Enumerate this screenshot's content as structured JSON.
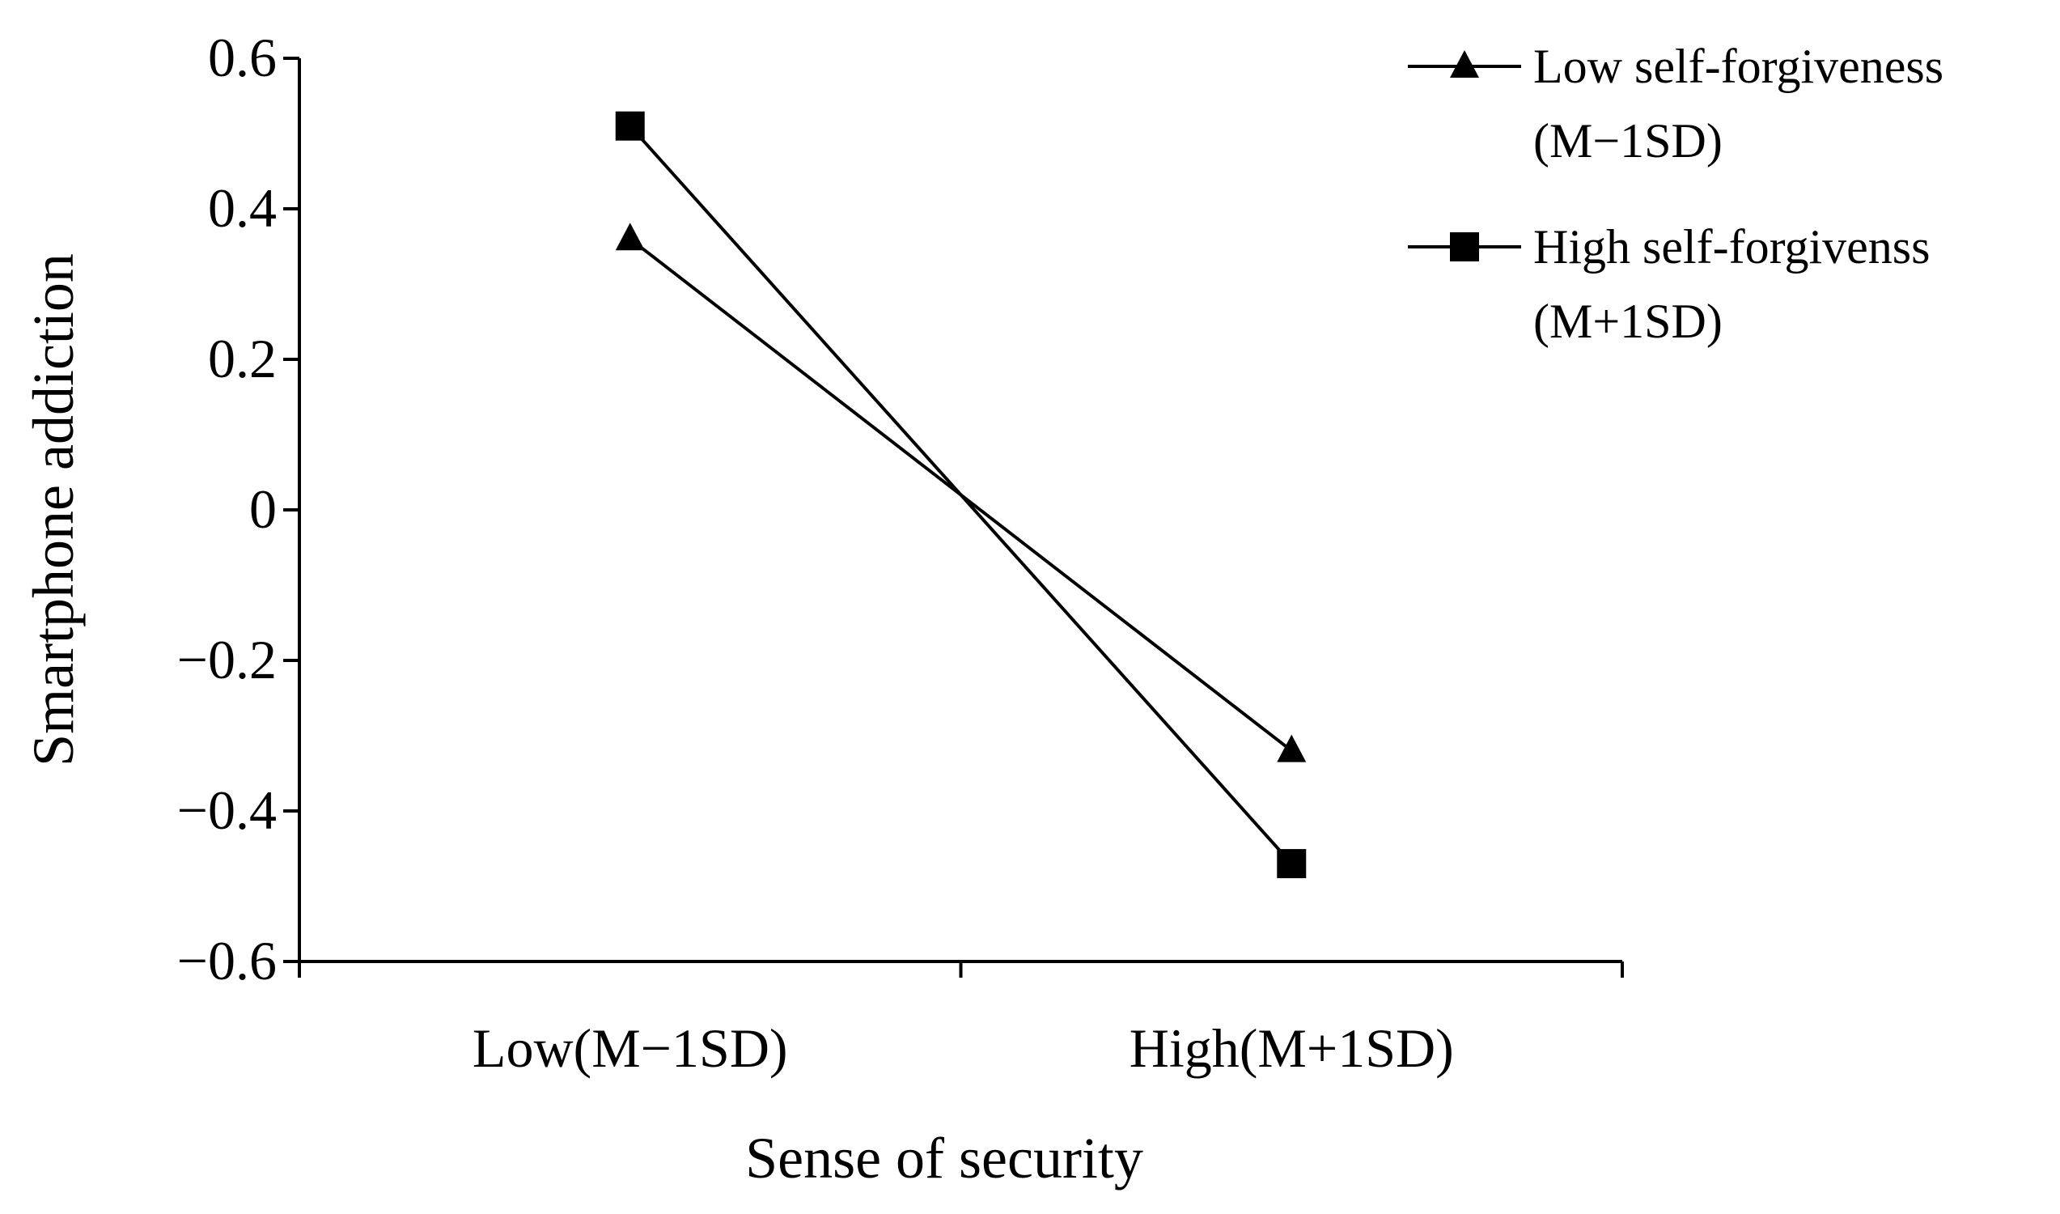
{
  "chart_data": {
    "type": "line",
    "xlabel": "Sense of security",
    "ylabel": "Smartphone addiction",
    "categories": [
      "Low(M−1SD)",
      "High(M+1SD)"
    ],
    "ylim": [
      -0.6,
      0.6
    ],
    "yticks": [
      0.6,
      0.4,
      0.2,
      0,
      -0.2,
      -0.4,
      -0.6
    ],
    "ytick_labels": [
      "0.6",
      "0.4",
      "0.2",
      "0",
      "−0.2",
      "−0.4",
      "−0.6"
    ],
    "grid": false,
    "legend_position": "top-right",
    "series": [
      {
        "name": "Low self-forgiveness (M−1SD)",
        "legend_lines": [
          "Low self-forgiveness",
          "(M−1SD)"
        ],
        "marker": "triangle",
        "values": [
          0.36,
          -0.32
        ]
      },
      {
        "name": "High self-forgivenss (M+1SD)",
        "legend_lines": [
          "High self-forgivenss",
          "(M+1SD)"
        ],
        "marker": "square",
        "values": [
          0.51,
          -0.47
        ]
      }
    ],
    "colors": {
      "line": "#000000",
      "axis": "#000000"
    }
  }
}
